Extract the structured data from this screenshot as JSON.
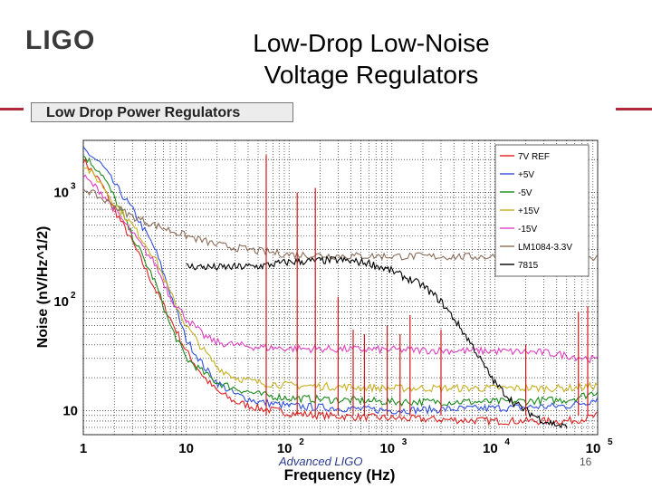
{
  "header": {
    "logo_text": "LIGO",
    "title_line1": "Low-Drop Low-Noise",
    "title_line2": "Voltage Regulators"
  },
  "panel": {
    "title": "Low Drop Power Regulators"
  },
  "footer": {
    "left": "Advanced LIGO",
    "page": "16"
  },
  "colors": {
    "accent_rule": "#b02a3a",
    "footer_text": "#2b3b8c"
  },
  "chart_data": {
    "type": "line",
    "title": "Low Drop Power Regulators",
    "xlabel": "Frequency (Hz)",
    "ylabel": "Noise (nV/Hz^1/2)",
    "xscale": "log",
    "yscale": "log",
    "xlim": [
      1,
      100000
    ],
    "ylim": [
      6,
      3000
    ],
    "x_ticks": [
      {
        "value": 1,
        "base": "1",
        "exp": ""
      },
      {
        "value": 10,
        "base": "10",
        "exp": ""
      },
      {
        "value": 100,
        "base": "10",
        "exp": "2"
      },
      {
        "value": 1000,
        "base": "10",
        "exp": "3"
      },
      {
        "value": 10000,
        "base": "10",
        "exp": "4"
      },
      {
        "value": 100000,
        "base": "10",
        "exp": "5"
      }
    ],
    "y_ticks": [
      {
        "value": 10,
        "base": "10",
        "exp": ""
      },
      {
        "value": 100,
        "base": "10",
        "exp": "2"
      },
      {
        "value": 1000,
        "base": "10",
        "exp": "3"
      }
    ],
    "legend_position": "top-right",
    "series": [
      {
        "name": "7V REF",
        "color": "#e02020",
        "points": [
          [
            1,
            2000
          ],
          [
            1.5,
            1200
          ],
          [
            2,
            700
          ],
          [
            3,
            350
          ],
          [
            5,
            130
          ],
          [
            7,
            70
          ],
          [
            10,
            35
          ],
          [
            15,
            20
          ],
          [
            20,
            15
          ],
          [
            30,
            12
          ],
          [
            50,
            10.5
          ],
          [
            100,
            9.5
          ],
          [
            200,
            9
          ],
          [
            1000,
            8.5
          ],
          [
            10000,
            8
          ],
          [
            50000,
            8
          ],
          [
            80000,
            8.5
          ],
          [
            100000,
            9
          ]
        ]
      },
      {
        "name": "+5V",
        "color": "#3050e0",
        "points": [
          [
            1,
            2500
          ],
          [
            1.5,
            1800
          ],
          [
            2,
            1200
          ],
          [
            3,
            700
          ],
          [
            5,
            300
          ],
          [
            7,
            120
          ],
          [
            10,
            45
          ],
          [
            15,
            25
          ],
          [
            20,
            18
          ],
          [
            30,
            14
          ],
          [
            50,
            12
          ],
          [
            100,
            11
          ],
          [
            1000,
            10
          ],
          [
            10000,
            10.5
          ],
          [
            50000,
            11
          ],
          [
            80000,
            12
          ],
          [
            100000,
            13
          ]
        ]
      },
      {
        "name": "-5V",
        "color": "#1a8a1a",
        "points": [
          [
            1,
            2200
          ],
          [
            1.5,
            1500
          ],
          [
            2,
            900
          ],
          [
            3,
            400
          ],
          [
            5,
            150
          ],
          [
            7,
            60
          ],
          [
            10,
            30
          ],
          [
            15,
            22
          ],
          [
            20,
            18
          ],
          [
            30,
            16
          ],
          [
            50,
            14
          ],
          [
            100,
            13
          ],
          [
            1000,
            12
          ],
          [
            10000,
            12
          ],
          [
            50000,
            12.5
          ],
          [
            80000,
            14
          ],
          [
            100000,
            15
          ]
        ]
      },
      {
        "name": "+15V",
        "color": "#c8b020",
        "points": [
          [
            1,
            1800
          ],
          [
            1.5,
            1200
          ],
          [
            2,
            800
          ],
          [
            3,
            500
          ],
          [
            5,
            250
          ],
          [
            7,
            120
          ],
          [
            10,
            60
          ],
          [
            15,
            35
          ],
          [
            20,
            25
          ],
          [
            30,
            20
          ],
          [
            50,
            18
          ],
          [
            100,
            17
          ],
          [
            1000,
            16
          ],
          [
            10000,
            16
          ],
          [
            50000,
            16
          ],
          [
            80000,
            16.5
          ],
          [
            100000,
            17
          ]
        ]
      },
      {
        "name": "-15V",
        "color": "#e040c0",
        "points": [
          [
            1,
            1400
          ],
          [
            1.5,
            1000
          ],
          [
            2,
            700
          ],
          [
            3,
            420
          ],
          [
            5,
            220
          ],
          [
            7,
            110
          ],
          [
            10,
            70
          ],
          [
            15,
            48
          ],
          [
            20,
            42
          ],
          [
            30,
            40
          ],
          [
            50,
            38
          ],
          [
            100,
            37
          ],
          [
            1000,
            36
          ],
          [
            10000,
            35
          ],
          [
            30000,
            34
          ],
          [
            50000,
            32
          ],
          [
            80000,
            30
          ],
          [
            100000,
            29
          ]
        ]
      },
      {
        "name": "LM1084-3.3V",
        "color": "#8c6e5a",
        "points": [
          [
            1,
            1100
          ],
          [
            2,
            750
          ],
          [
            3,
            600
          ],
          [
            5,
            500
          ],
          [
            10,
            400
          ],
          [
            20,
            330
          ],
          [
            50,
            290
          ],
          [
            100,
            270
          ],
          [
            300,
            262
          ],
          [
            1000,
            260
          ],
          [
            3000,
            258
          ],
          [
            10000,
            257
          ],
          [
            30000,
            256
          ],
          [
            100000,
            256
          ]
        ]
      },
      {
        "name": "7815",
        "color": "#000000",
        "points": [
          [
            10,
            210
          ],
          [
            20,
            205
          ],
          [
            50,
            210
          ],
          [
            100,
            230
          ],
          [
            300,
            240
          ],
          [
            600,
            225
          ],
          [
            1000,
            190
          ],
          [
            2000,
            140
          ],
          [
            3000,
            100
          ],
          [
            4000,
            70
          ],
          [
            6000,
            40
          ],
          [
            8000,
            25
          ],
          [
            10000,
            18
          ],
          [
            15000,
            12
          ],
          [
            20000,
            10
          ],
          [
            30000,
            8
          ],
          [
            50000,
            7
          ]
        ]
      }
    ],
    "spikes": [
      {
        "x": 60,
        "top": 2200,
        "bottom": 9
      },
      {
        "x": 120,
        "top": 1000,
        "bottom": 9
      },
      {
        "x": 180,
        "top": 1100,
        "bottom": 9
      },
      {
        "x": 300,
        "top": 110,
        "bottom": 9
      },
      {
        "x": 420,
        "top": 55,
        "bottom": 9
      },
      {
        "x": 540,
        "top": 50,
        "bottom": 9
      },
      {
        "x": 900,
        "top": 60,
        "bottom": 9
      },
      {
        "x": 1200,
        "top": 50,
        "bottom": 9
      },
      {
        "x": 1500,
        "top": 75,
        "bottom": 9
      },
      {
        "x": 3000,
        "top": 55,
        "bottom": 9
      },
      {
        "x": 20000,
        "top": 40,
        "bottom": 9
      },
      {
        "x": 65000,
        "top": 80,
        "bottom": 9
      },
      {
        "x": 80000,
        "top": 90,
        "bottom": 9
      }
    ]
  }
}
